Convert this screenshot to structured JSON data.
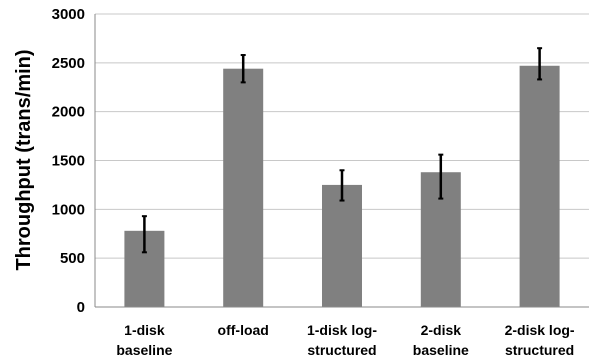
{
  "chart_data": {
    "type": "bar",
    "title": "",
    "xlabel": "",
    "ylabel": "Throughput (trans/min)",
    "ylim": [
      0,
      3000
    ],
    "yticks": [
      0,
      500,
      1000,
      1500,
      2000,
      2500,
      3000
    ],
    "grid": "horizontal",
    "categories": [
      [
        "1-disk",
        "baseline"
      ],
      [
        "off-load"
      ],
      [
        "1-disk log-",
        "structured"
      ],
      [
        "2-disk",
        "baseline"
      ],
      [
        "2-disk log-",
        "structured"
      ]
    ],
    "values": [
      780,
      2440,
      1250,
      1380,
      2470
    ],
    "error_low": [
      560,
      2300,
      1090,
      1110,
      2330
    ],
    "error_high": [
      930,
      2580,
      1400,
      1560,
      2650
    ],
    "colors": {
      "bar": "#808080",
      "grid": "#c8c8c8",
      "axis": "#8a8a8a",
      "errorbar": "#000000"
    }
  }
}
